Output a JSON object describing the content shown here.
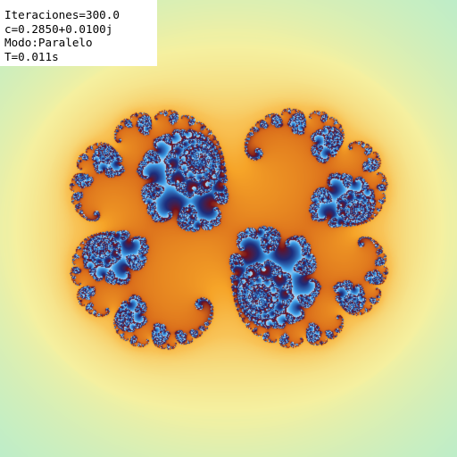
{
  "overlay": {
    "iterations": "Iteraciones=300.0",
    "constant": "c=0.2850+0.0100j",
    "mode": "Modo:Paralelo",
    "time": "T=0.011s"
  },
  "fractal": {
    "type": "julia",
    "c_re": 0.285,
    "c_im": 0.01,
    "max_iterations": 300,
    "colors": {
      "exterior": "#8ee6e6",
      "near": "#f5f0a0",
      "mid": "#f6a428",
      "deep": "#6e0f1c",
      "interior": "#3da0ea"
    }
  }
}
